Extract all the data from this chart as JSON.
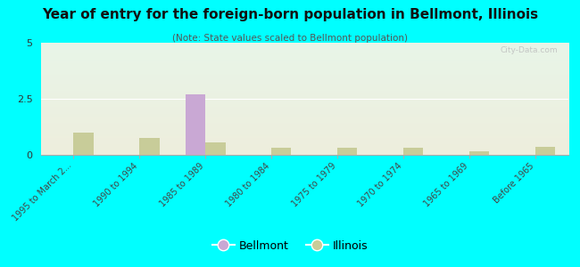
{
  "title": "Year of entry for the foreign-born population in Bellmont, Illinois",
  "subtitle": "(Note: State values scaled to Bellmont population)",
  "categories": [
    "1995 to March 2...",
    "1990 to 1994",
    "1985 to 1989",
    "1980 to 1984",
    "1975 to 1979",
    "1970 to 1974",
    "1965 to 1969",
    "Before 1965"
  ],
  "bellmont_values": [
    0,
    0,
    2.7,
    0,
    0,
    0,
    0,
    0
  ],
  "illinois_values": [
    1.0,
    0.75,
    0.55,
    0.3,
    0.3,
    0.3,
    0.15,
    0.35
  ],
  "bellmont_color": "#c9a8d4",
  "illinois_color": "#c8cc99",
  "background_color": "#00ffff",
  "ylim": [
    0,
    5
  ],
  "yticks": [
    0,
    2.5,
    5
  ],
  "bar_width": 0.3,
  "watermark": "City-Data.com"
}
